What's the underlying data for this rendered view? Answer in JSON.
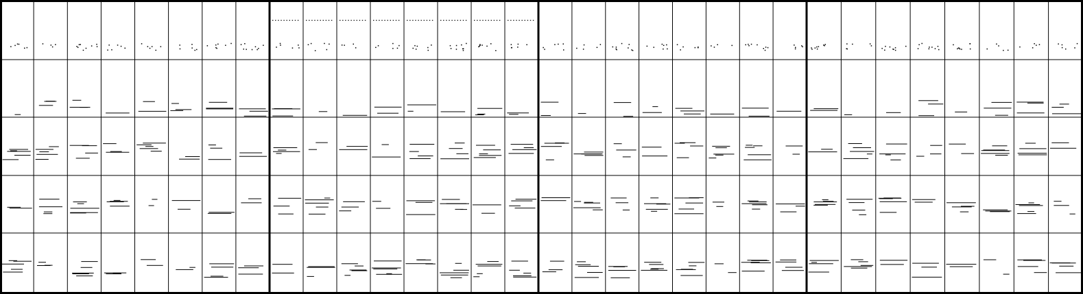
{
  "colors": {
    "background": "#ffffff",
    "ink": "#000000"
  },
  "grid": {
    "sections": 4,
    "bars_per_section": 8,
    "tracks": 5
  },
  "tracks": [
    {
      "name": "track-1-dotted",
      "style": "dots",
      "sections": [
        [
          [
            0.15,
            0.5,
            "s"
          ],
          [
            0.25,
            0.45,
            "s"
          ],
          [
            0.35,
            0.55,
            "s"
          ],
          [
            0.5,
            0.48,
            "s"
          ],
          [
            0.65,
            0.5,
            "s"
          ],
          [
            0.8,
            0.45,
            "s"
          ],
          [
            0.9,
            0.52,
            "s"
          ]
        ],
        [
          [
            0.1,
            0.5,
            "s"
          ],
          [
            0.3,
            0.4,
            "s"
          ],
          [
            0.5,
            0.45,
            "s"
          ],
          [
            0.7,
            0.55,
            "s"
          ],
          [
            0.85,
            0.5,
            "s"
          ],
          [
            0.2,
            0.3,
            "s"
          ],
          [
            0.6,
            0.35,
            "s"
          ],
          [
            0.4,
            0.6,
            "s"
          ]
        ],
        [
          [
            0.1,
            0.45,
            "s"
          ],
          [
            0.2,
            0.55,
            "s"
          ],
          [
            0.3,
            0.4,
            "s"
          ],
          [
            0.4,
            0.5,
            "s"
          ],
          [
            0.5,
            0.45,
            "s"
          ],
          [
            0.6,
            0.55,
            "s"
          ],
          [
            0.7,
            0.42,
            "s"
          ],
          [
            0.8,
            0.5,
            "s"
          ],
          [
            0.9,
            0.45,
            "s"
          ]
        ],
        [
          [
            0.15,
            0.48,
            "s"
          ],
          [
            0.3,
            0.5,
            "s"
          ],
          [
            0.45,
            0.46,
            "s"
          ],
          [
            0.6,
            0.5,
            "s"
          ],
          [
            0.75,
            0.48,
            "s"
          ],
          [
            0.9,
            0.5,
            "s"
          ]
        ]
      ]
    }
  ]
}
